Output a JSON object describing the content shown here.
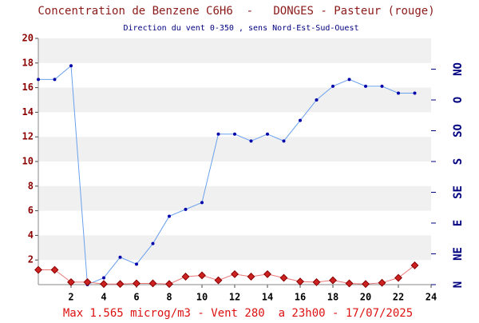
{
  "chart_data": {
    "type": "line",
    "title": "Concentration de Benzene C6H6  -   DONGES - Pasteur (rouge)",
    "subtitle": "Direction du vent 0-350 , sens Nord-Est-Sud-Ouest",
    "footer": "Max 1.565 microg/m3 - Vent 280  a 23h00 - 17/07/2025",
    "x": [
      0,
      1,
      2,
      3,
      4,
      5,
      6,
      7,
      8,
      9,
      10,
      11,
      12,
      13,
      14,
      15,
      16,
      17,
      18,
      19,
      20,
      21,
      22,
      23
    ],
    "xlim": [
      0,
      24
    ],
    "xticks": [
      2,
      4,
      6,
      8,
      10,
      12,
      14,
      16,
      18,
      20,
      22,
      24
    ],
    "ylim": [
      0,
      20
    ],
    "yticks": [
      2,
      4,
      6,
      8,
      10,
      12,
      14,
      16,
      18,
      20
    ],
    "y2lim": [
      0,
      360
    ],
    "y2ticks": [
      {
        "value": 0,
        "label": "N"
      },
      {
        "value": 45,
        "label": "NE"
      },
      {
        "value": 90,
        "label": "E"
      },
      {
        "value": 135,
        "label": "SE"
      },
      {
        "value": 180,
        "label": "S"
      },
      {
        "value": 225,
        "label": "SO"
      },
      {
        "value": 270,
        "label": "O"
      },
      {
        "value": 315,
        "label": "NO"
      }
    ],
    "grid": true,
    "series": [
      {
        "name": "Vent",
        "color": "#1f4fd8",
        "axis": "y2",
        "values": [
          300,
          300,
          320,
          0,
          10,
          40,
          30,
          60,
          100,
          110,
          120,
          220,
          220,
          210,
          220,
          210,
          240,
          270,
          290,
          300,
          290,
          290,
          280,
          280
        ]
      },
      {
        "name": "Benzene",
        "color": "#cc2222",
        "values": [
          1.2,
          1.2,
          0.2,
          0.2,
          0.05,
          0.05,
          0.1,
          0.1,
          0.05,
          0.65,
          0.75,
          0.35,
          0.85,
          0.65,
          0.85,
          0.55,
          0.25,
          0.2,
          0.35,
          0.1,
          0.05,
          0.15,
          0.55,
          1.565
        ]
      }
    ]
  }
}
